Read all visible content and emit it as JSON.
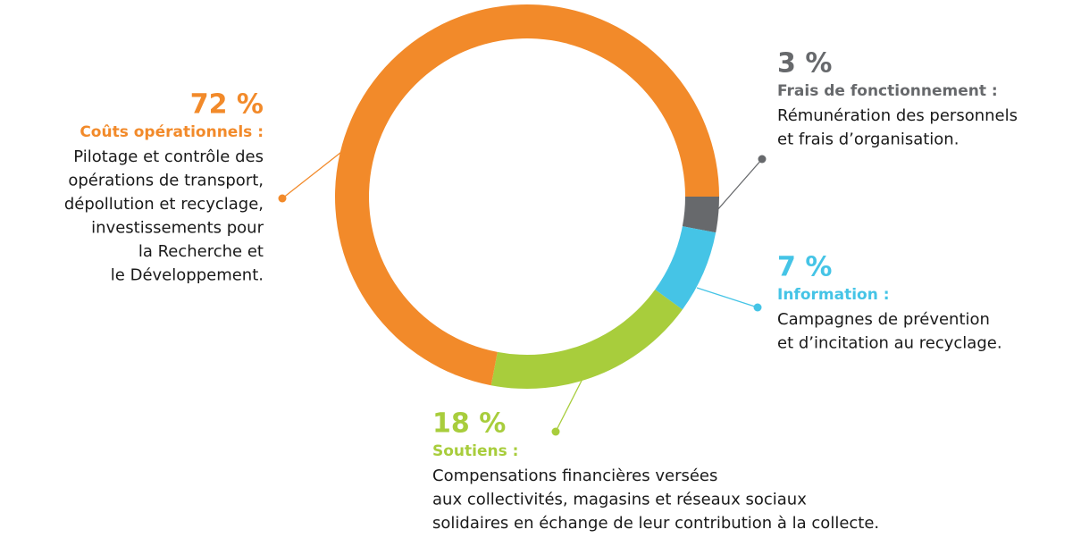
{
  "chart_data": {
    "type": "donut",
    "categories": [
      "Frais de fonctionnement :",
      "Information :",
      "Soutiens :",
      "Coûts opérationnels :"
    ],
    "values": [
      3,
      7,
      18,
      72
    ],
    "value_labels": [
      "3 %",
      "7 %",
      "18 %",
      "72 %"
    ],
    "descriptions": [
      [
        "Rémunération des personnels",
        "et frais d’organisation."
      ],
      [
        "Campagnes de prévention",
        "et d’incitation au recyclage."
      ],
      [
        "Compensations financières versées",
        "aux collectivités, magasins et réseaux sociaux",
        "solidaires en échange de leur contribution à la collecte."
      ],
      [
        "Pilotage et contrôle des",
        "opérations de transport,",
        "dépollution et recyclage,",
        "investissements pour",
        "la Recherche et",
        "le Développement."
      ]
    ],
    "colors": [
      "#67696c",
      "#45c4e6",
      "#a8cd3c",
      "#f28a2a"
    ]
  }
}
